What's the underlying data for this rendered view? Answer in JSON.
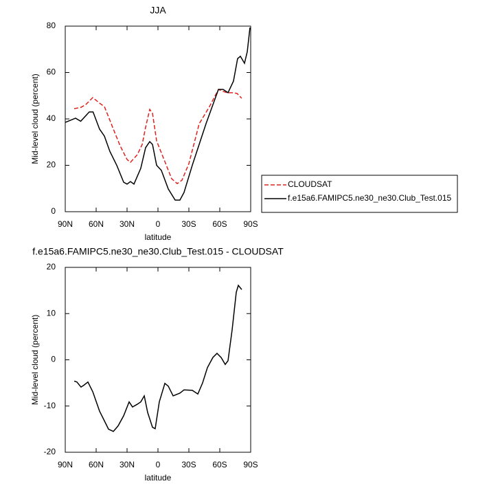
{
  "chart_data": [
    {
      "type": "line",
      "title": "JJA",
      "xlabel": "latitude",
      "ylabel": "Mid-level cloud (percent)",
      "xlim": [
        90,
        -90
      ],
      "xticks": [
        {
          "value": 90,
          "label": "90N"
        },
        {
          "value": 60,
          "label": "60N"
        },
        {
          "value": 30,
          "label": "30N"
        },
        0,
        {
          "value": -30,
          "label": "30S"
        },
        {
          "value": -60,
          "label": "60S"
        },
        {
          "value": -90,
          "label": "90S"
        }
      ],
      "ylim": [
        0,
        80
      ],
      "yticks": [
        0,
        20,
        40,
        60,
        80
      ],
      "legend": "right",
      "series": [
        {
          "name": "CLOUDSAT",
          "color": "#e0201b",
          "line_style": "dashed",
          "x": [
            81.3,
            74.7,
            70,
            63.3,
            56.7,
            52,
            48,
            43.3,
            36.7,
            30,
            26.7,
            20,
            15.3,
            12,
            8,
            5.3,
            1.3,
            -6.7,
            -13.3,
            -18.7,
            -23.3,
            -30,
            -40,
            -50,
            -58.7,
            -66.7,
            -72,
            -76.7,
            -81.3
          ],
          "values": [
            44.4,
            45,
            46.2,
            49.2,
            46.8,
            45.3,
            40.9,
            35.6,
            28.4,
            22.5,
            21.3,
            24.6,
            29,
            36.4,
            44.1,
            42.4,
            30.5,
            21.6,
            14.2,
            12.1,
            13.6,
            20.7,
            37.9,
            45.3,
            52.7,
            51.3,
            51.3,
            51,
            48.9
          ]
        },
        {
          "name": "f.e15a6.FAMIPC5.ne30_ne30.Club_Test.015",
          "color": "#000000",
          "line_style": "solid",
          "x": [
            90,
            80,
            75,
            66.7,
            63,
            56.7,
            52,
            46.7,
            40,
            33.3,
            30,
            26.7,
            23.3,
            16.7,
            12,
            8,
            5.3,
            1.3,
            -3.3,
            -10,
            -16.7,
            -21.3,
            -25.3,
            -33.3,
            -46.7,
            -58.7,
            -63.3,
            -68,
            -73.3,
            -77.3,
            -80,
            -84,
            -86.7,
            -89.3
          ],
          "values": [
            38.5,
            40.3,
            39,
            43,
            43,
            35.6,
            32.6,
            26,
            20,
            12.7,
            11.9,
            13,
            11.9,
            18.7,
            27.6,
            30.2,
            29,
            20,
            17.8,
            9.8,
            5,
            5,
            8.3,
            20,
            38,
            52.7,
            52.7,
            51.3,
            56.3,
            66,
            67,
            64,
            69,
            79.4
          ]
        }
      ]
    },
    {
      "type": "line",
      "title": "f.e15a6.FAMIPC5.ne30_ne30.Club_Test.015 - CLOUDSAT",
      "xlabel": "latitude",
      "ylabel": "Mid-level cloud (percent)",
      "xlim": [
        90,
        -90
      ],
      "xticks": [
        {
          "value": 90,
          "label": "90N"
        },
        {
          "value": 60,
          "label": "60N"
        },
        {
          "value": 30,
          "label": "30N"
        },
        0,
        {
          "value": -30,
          "label": "30S"
        },
        {
          "value": -60,
          "label": "60S"
        },
        {
          "value": -90,
          "label": "90S"
        }
      ],
      "ylim": [
        -20,
        20
      ],
      "yticks": [
        -20,
        -10,
        0,
        10,
        20
      ],
      "series": [
        {
          "color": "#000000",
          "line_style": "solid",
          "x": [
            81.3,
            78.7,
            74.7,
            72,
            68,
            63.3,
            56.7,
            52,
            48,
            43.3,
            38.7,
            33.3,
            28,
            24.7,
            20,
            16.7,
            13.3,
            10,
            5.3,
            2.7,
            -1.3,
            -6.7,
            -10,
            -14.7,
            -21.3,
            -25.3,
            -33.3,
            -38.7,
            -43.3,
            -48,
            -53.3,
            -57.3,
            -61.3,
            -65.3,
            -68,
            -72,
            -76,
            -78,
            -81.3
          ],
          "values": [
            -4.6,
            -4.8,
            -5.9,
            -5.5,
            -4.8,
            -6.9,
            -11.1,
            -13.2,
            -15,
            -15.5,
            -14.3,
            -12.1,
            -9.1,
            -10.2,
            -9.6,
            -9.1,
            -7.8,
            -11.4,
            -14.6,
            -14.9,
            -9.1,
            -5.1,
            -5.7,
            -7.8,
            -7.2,
            -6.5,
            -6.6,
            -7.4,
            -5,
            -1.7,
            0.5,
            1.4,
            0.5,
            -1,
            -0.2,
            6.5,
            14.6,
            16.1,
            15.2
          ]
        }
      ]
    }
  ]
}
